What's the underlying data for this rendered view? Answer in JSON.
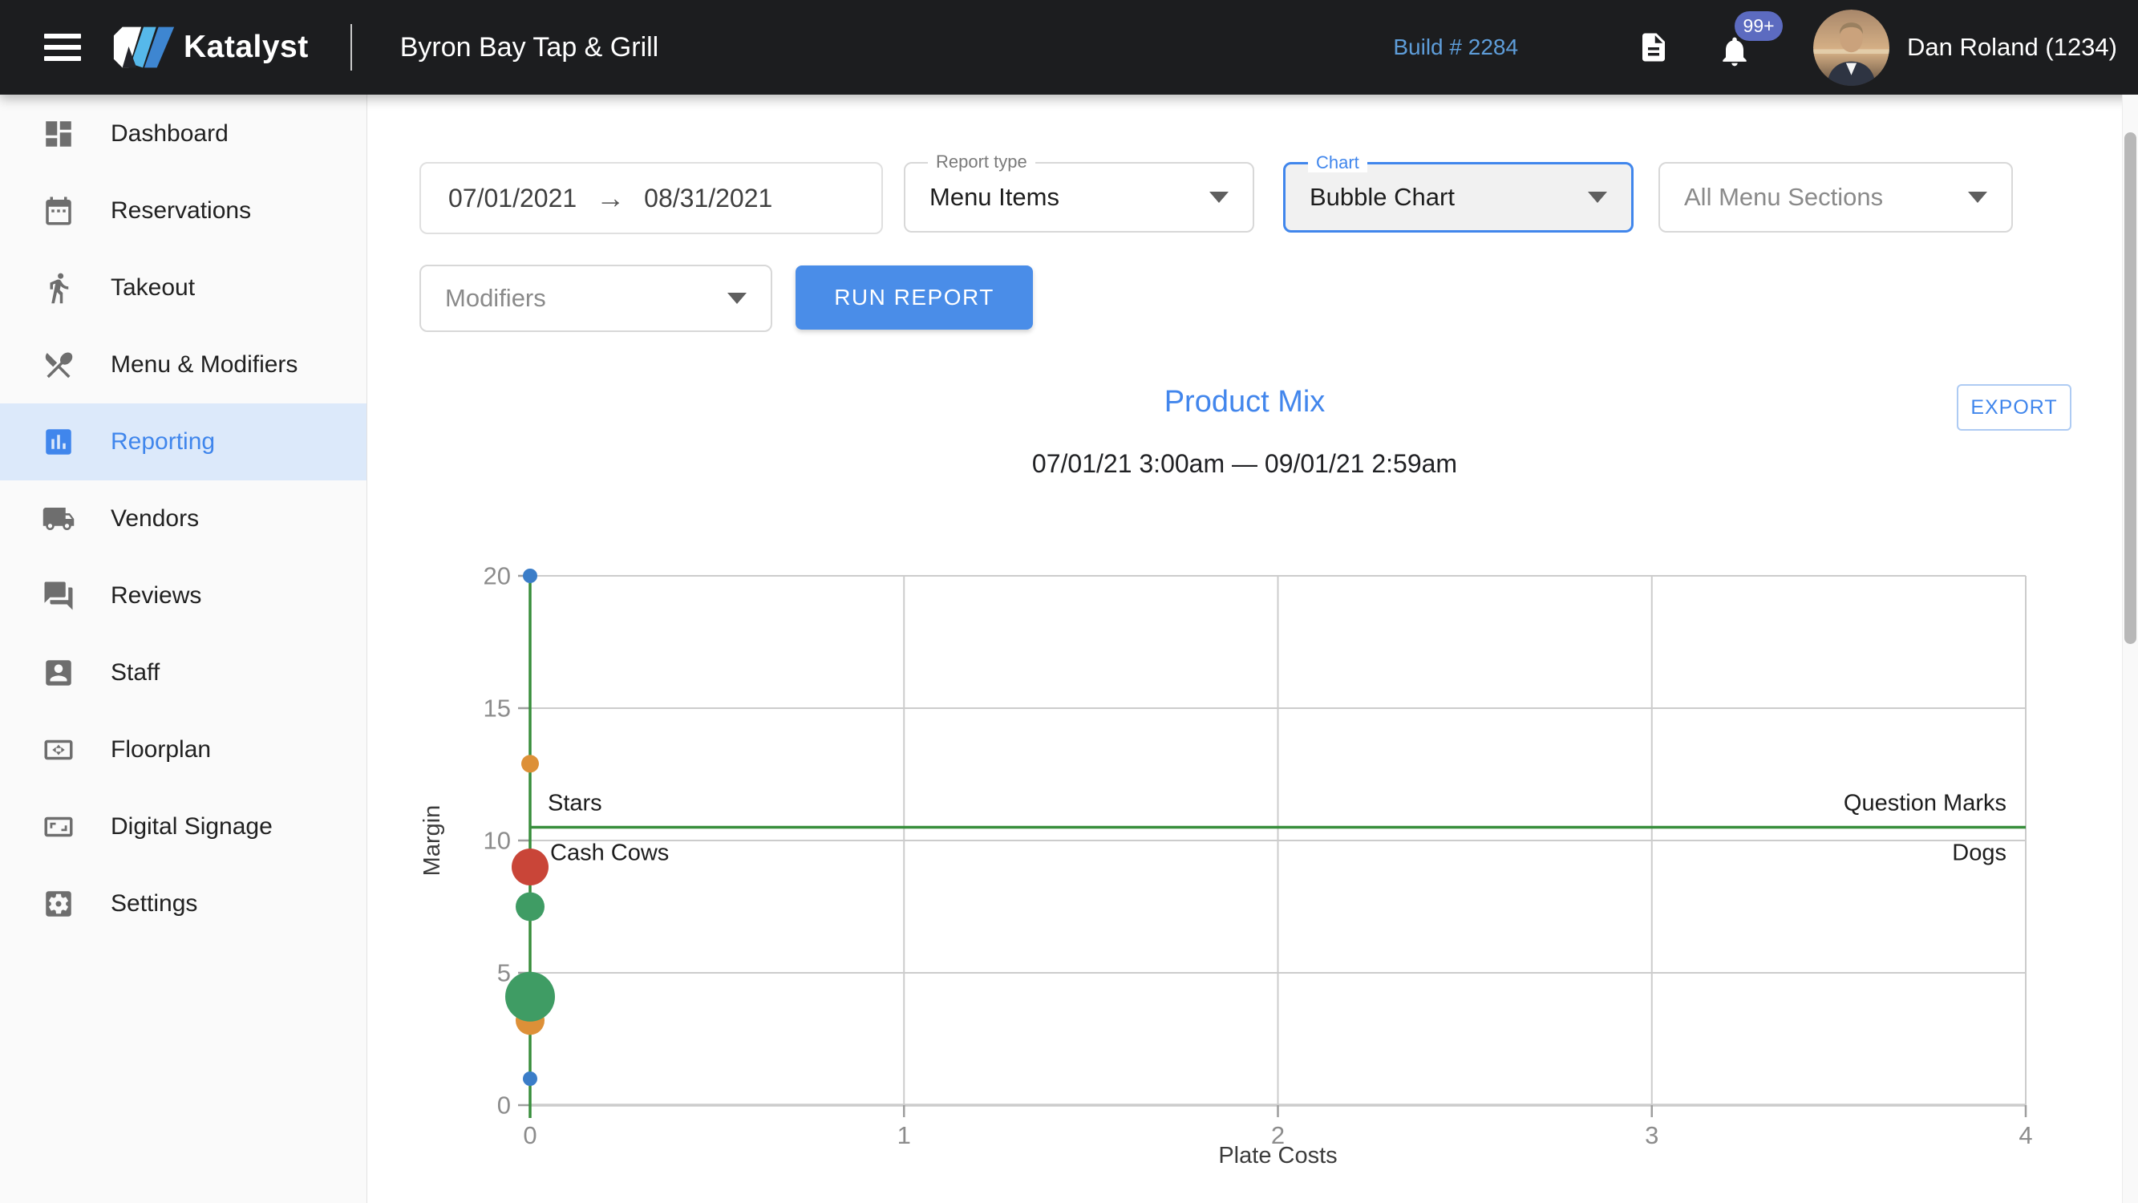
{
  "header": {
    "brand": "Katalyst",
    "restaurant": "Byron Bay Tap & Grill",
    "build_label": "Build # 2284",
    "notification_badge": "99+",
    "notification_badge_color": "#5c6bc0",
    "user": "Dan Roland (1234)",
    "build_color": "#5e9dd9",
    "bar_color": "#1c1d1f"
  },
  "sidebar": {
    "items": [
      {
        "id": "dashboard",
        "label": "Dashboard",
        "icon": "dashboard-icon",
        "active": false
      },
      {
        "id": "reservations",
        "label": "Reservations",
        "icon": "calendar-icon",
        "active": false
      },
      {
        "id": "takeout",
        "label": "Takeout",
        "icon": "walking-person-icon",
        "active": false
      },
      {
        "id": "menu-modifiers",
        "label": "Menu & Modifiers",
        "icon": "crossed-utensils-icon",
        "active": false
      },
      {
        "id": "reporting",
        "label": "Reporting",
        "icon": "bar-chart-icon",
        "active": true
      },
      {
        "id": "vendors",
        "label": "Vendors",
        "icon": "truck-icon",
        "active": false
      },
      {
        "id": "reviews",
        "label": "Reviews",
        "icon": "chat-bubbles-icon",
        "active": false
      },
      {
        "id": "staff",
        "label": "Staff",
        "icon": "person-badge-icon",
        "active": false
      },
      {
        "id": "floorplan",
        "label": "Floorplan",
        "icon": "fit-screen-icon",
        "active": false
      },
      {
        "id": "digital-signage",
        "label": "Digital Signage",
        "icon": "signage-screen-icon",
        "active": false
      },
      {
        "id": "settings",
        "label": "Settings",
        "icon": "gear-icon",
        "active": false
      }
    ]
  },
  "page": {
    "title": "Reporting"
  },
  "filters": {
    "date_start": "07/01/2021",
    "date_end": "08/31/2021",
    "report_type_label": "Report type",
    "report_type_value": "Menu Items",
    "chart_label": "Chart",
    "chart_value": "Bubble Chart",
    "menu_sections_value": "All Menu Sections",
    "modifiers_value": "Modifiers",
    "run_report_label": "RUN REPORT"
  },
  "report": {
    "title": "Product Mix",
    "subtitle": "07/01/21 3:00am — 09/01/21 2:59am",
    "export_label": "EXPORT"
  },
  "chart_data": {
    "type": "scatter",
    "title": "Product Mix",
    "xlabel": "Plate Costs",
    "ylabel": "Margin",
    "xlim": [
      0,
      4
    ],
    "ylim": [
      0,
      20
    ],
    "xticks": [
      0,
      1,
      2,
      3,
      4
    ],
    "yticks": [
      0,
      5,
      10,
      15,
      20
    ],
    "grid": true,
    "legend": "none",
    "quadrant_divider": {
      "x": 0,
      "y": 10.5,
      "color": "#388e3c"
    },
    "quadrant_labels": [
      {
        "text": "Stars",
        "position": "top-left"
      },
      {
        "text": "Question Marks",
        "position": "top-right"
      },
      {
        "text": "Cash Cows",
        "position": "bottom-left"
      },
      {
        "text": "Dogs",
        "position": "bottom-right"
      }
    ],
    "bubbles": [
      {
        "x": 0,
        "y": 20,
        "r": 9,
        "color": "#3b7dc8"
      },
      {
        "x": 0,
        "y": 12.9,
        "r": 11,
        "color": "#dd9038"
      },
      {
        "x": 0,
        "y": 9,
        "r": 23,
        "color": "#c94538"
      },
      {
        "x": 0,
        "y": 7.5,
        "r": 18,
        "color": "#3f9c64"
      },
      {
        "x": 0,
        "y": 3.2,
        "r": 18,
        "color": "#dd9038"
      },
      {
        "x": 0,
        "y": 4.1,
        "r": 31,
        "color": "#3f9c64"
      },
      {
        "x": 0,
        "y": 1,
        "r": 9,
        "color": "#3b7dc8"
      }
    ]
  }
}
